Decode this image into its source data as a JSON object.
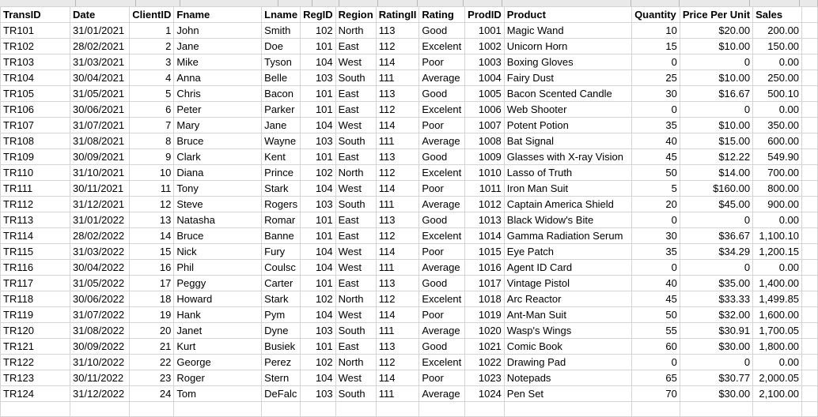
{
  "columns": [
    {
      "key": "transid",
      "header": "TransID",
      "width": 96,
      "align": "l"
    },
    {
      "key": "date",
      "header": "Date",
      "width": 76,
      "align": "l"
    },
    {
      "key": "clientid",
      "header": "ClientID",
      "width": 56,
      "align": "r"
    },
    {
      "key": "fname",
      "header": "Fname",
      "width": 124,
      "align": "l"
    },
    {
      "key": "lname",
      "header": "Lname",
      "width": 43,
      "align": "l"
    },
    {
      "key": "regid",
      "header": "RegID",
      "width": 34,
      "align": "r"
    },
    {
      "key": "region",
      "header": "Region",
      "width": 49,
      "align": "l"
    },
    {
      "key": "ratingid",
      "header": "RatingII",
      "width": 50,
      "align": "l"
    },
    {
      "key": "rating",
      "header": "Rating",
      "width": 58,
      "align": "l"
    },
    {
      "key": "prodid",
      "header": "ProdID",
      "width": 49,
      "align": "r"
    },
    {
      "key": "product",
      "header": "Product",
      "width": 163,
      "align": "l"
    },
    {
      "key": "quantity",
      "header": "Quantity",
      "width": 61,
      "align": "r"
    },
    {
      "key": "ppu",
      "header": "Price Per Unit",
      "width": 89,
      "align": "r"
    },
    {
      "key": "sales",
      "header": "Sales",
      "width": 63,
      "align": "r"
    },
    {
      "key": "extra",
      "header": "",
      "width": 23,
      "align": "l"
    }
  ],
  "rows": [
    [
      "TR101",
      "31/01/2021",
      "1",
      "John",
      "Smith",
      "102",
      "North",
      "113",
      "Good",
      "1001",
      "Magic Wand",
      "10",
      "$20.00",
      "200.00",
      ""
    ],
    [
      "TR102",
      "28/02/2021",
      "2",
      "Jane",
      "Doe",
      "101",
      "East",
      "112",
      "Excelent",
      "1002",
      "Unicorn Horn",
      "15",
      "$10.00",
      "150.00",
      ""
    ],
    [
      "TR103",
      "31/03/2021",
      "3",
      "Mike",
      "Tyson",
      "104",
      "West",
      "114",
      "Poor",
      "1003",
      "Boxing Gloves",
      "0",
      "0",
      "0.00",
      ""
    ],
    [
      "TR104",
      "30/04/2021",
      "4",
      "Anna",
      "Belle",
      "103",
      "South",
      "111",
      "Average",
      "1004",
      "Fairy Dust",
      "25",
      "$10.00",
      "250.00",
      ""
    ],
    [
      "TR105",
      "31/05/2021",
      "5",
      "Chris",
      "Bacon",
      "101",
      "East",
      "113",
      "Good",
      "1005",
      "Bacon Scented Candle",
      "30",
      "$16.67",
      "500.10",
      ""
    ],
    [
      "TR106",
      "30/06/2021",
      "6",
      "Peter",
      "Parker",
      "101",
      "East",
      "112",
      "Excelent",
      "1006",
      "Web Shooter",
      "0",
      "0",
      "0.00",
      ""
    ],
    [
      "TR107",
      "31/07/2021",
      "7",
      "Mary",
      "Jane",
      "104",
      "West",
      "114",
      "Poor",
      "1007",
      "Potent Potion",
      "35",
      "$10.00",
      "350.00",
      ""
    ],
    [
      "TR108",
      "31/08/2021",
      "8",
      "Bruce",
      "Wayne",
      "103",
      "South",
      "111",
      "Average",
      "1008",
      "Bat Signal",
      "40",
      "$15.00",
      "600.00",
      ""
    ],
    [
      "TR109",
      "30/09/2021",
      "9",
      "Clark",
      "Kent",
      "101",
      "East",
      "113",
      "Good",
      "1009",
      "Glasses with X-ray Vision",
      "45",
      "$12.22",
      "549.90",
      ""
    ],
    [
      "TR110",
      "31/10/2021",
      "10",
      "Diana",
      "Prince",
      "102",
      "North",
      "112",
      "Excelent",
      "1010",
      "Lasso of Truth",
      "50",
      "$14.00",
      "700.00",
      ""
    ],
    [
      "TR111",
      "30/11/2021",
      "11",
      "Tony",
      "Stark",
      "104",
      "West",
      "114",
      "Poor",
      "1011",
      "Iron Man Suit",
      "5",
      "$160.00",
      "800.00",
      ""
    ],
    [
      "TR112",
      "31/12/2021",
      "12",
      "Steve",
      "Rogers",
      "103",
      "South",
      "111",
      "Average",
      "1012",
      "Captain America Shield",
      "20",
      "$45.00",
      "900.00",
      ""
    ],
    [
      "TR113",
      "31/01/2022",
      "13",
      "Natasha",
      "Romar",
      "101",
      "East",
      "113",
      "Good",
      "1013",
      "Black Widow's Bite",
      "0",
      "0",
      "0.00",
      ""
    ],
    [
      "TR114",
      "28/02/2022",
      "14",
      "Bruce",
      "Banne",
      "101",
      "East",
      "112",
      "Excelent",
      "1014",
      "Gamma Radiation Serum",
      "30",
      "$36.67",
      "1,100.10",
      ""
    ],
    [
      "TR115",
      "31/03/2022",
      "15",
      "Nick",
      "Fury",
      "104",
      "West",
      "114",
      "Poor",
      "1015",
      "Eye Patch",
      "35",
      "$34.29",
      "1,200.15",
      ""
    ],
    [
      "TR116",
      "30/04/2022",
      "16",
      "Phil",
      "Coulsc",
      "104",
      "West",
      "111",
      "Average",
      "1016",
      "Agent ID Card",
      "0",
      "0",
      "0.00",
      ""
    ],
    [
      "TR117",
      "31/05/2022",
      "17",
      "Peggy",
      "Carter",
      "101",
      "East",
      "113",
      "Good",
      "1017",
      "Vintage Pistol",
      "40",
      "$35.00",
      "1,400.00",
      ""
    ],
    [
      "TR118",
      "30/06/2022",
      "18",
      "Howard",
      "Stark",
      "102",
      "North",
      "112",
      "Excelent",
      "1018",
      "Arc Reactor",
      "45",
      "$33.33",
      "1,499.85",
      ""
    ],
    [
      "TR119",
      "31/07/2022",
      "19",
      "Hank",
      "Pym",
      "104",
      "West",
      "114",
      "Poor",
      "1019",
      "Ant-Man Suit",
      "50",
      "$32.00",
      "1,600.00",
      ""
    ],
    [
      "TR120",
      "31/08/2022",
      "20",
      "Janet",
      "Dyne",
      "103",
      "South",
      "111",
      "Average",
      "1020",
      "Wasp's Wings",
      "55",
      "$30.91",
      "1,700.05",
      ""
    ],
    [
      "TR121",
      "30/09/2022",
      "21",
      "Kurt",
      "Busiek",
      "101",
      "East",
      "113",
      "Good",
      "1021",
      "Comic Book",
      "60",
      "$30.00",
      "1,800.00",
      ""
    ],
    [
      "TR122",
      "31/10/2022",
      "22",
      "George",
      "Perez",
      "102",
      "North",
      "112",
      "Excelent",
      "1022",
      "Drawing Pad",
      "0",
      "0",
      "0.00",
      ""
    ],
    [
      "TR123",
      "30/11/2022",
      "23",
      "Roger",
      "Stern",
      "104",
      "West",
      "114",
      "Poor",
      "1023",
      "Notepads",
      "65",
      "$30.77",
      "2,000.05",
      ""
    ],
    [
      "TR124",
      "31/12/2022",
      "24",
      "Tom",
      "DeFalc",
      "103",
      "South",
      "111",
      "Average",
      "1024",
      "Pen Set",
      "70",
      "$30.00",
      "2,100.00",
      ""
    ],
    [
      "",
      "",
      "",
      "",
      "",
      "",
      "",
      "",
      "",
      "",
      "",
      "",
      "",
      "",
      ""
    ]
  ]
}
